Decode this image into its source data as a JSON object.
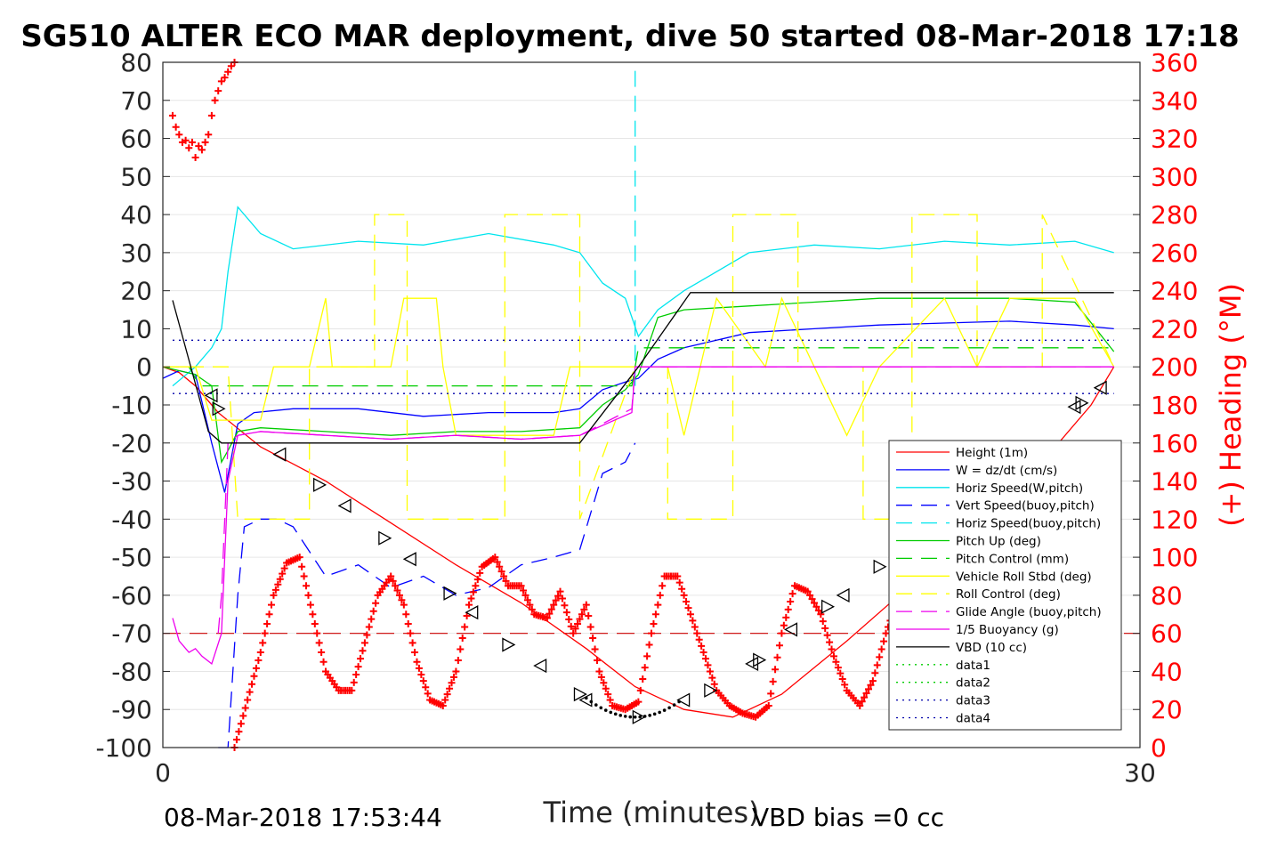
{
  "chart_data": {
    "type": "line",
    "title": "SG510 ALTER ECO MAR deployment, dive 50 started 08-Mar-2018 17:18",
    "xlabel": "Time (minutes)",
    "ylabel_right": "(+) Heading (°M)",
    "xlim": [
      0,
      30
    ],
    "ylim": [
      -100,
      80
    ],
    "ylim_right": [
      0,
      360
    ],
    "x_ticks": [
      "0",
      "30"
    ],
    "y_ticks": [
      "80",
      "70",
      "60",
      "50",
      "40",
      "30",
      "20",
      "10",
      "0",
      "-10",
      "-20",
      "-30",
      "-40",
      "-50",
      "-60",
      "-70",
      "-80",
      "-90",
      "-100"
    ],
    "y_ticks_right": [
      "360",
      "340",
      "320",
      "300",
      "280",
      "260",
      "240",
      "220",
      "200",
      "180",
      "160",
      "140",
      "120",
      "100",
      "80",
      "60",
      "40",
      "20",
      "0"
    ],
    "grid": true,
    "legend_position": "bottom-right",
    "footer_left": "08-Mar-2018 17:53:44",
    "footer_right": "VBD bias =0 cc",
    "colors": {
      "heading": "#ff0000",
      "axis": "#262626"
    },
    "series": [
      {
        "name": "Height (1m)",
        "color": "#ff0000",
        "style": "solid",
        "x": [
          0,
          0.5,
          1,
          1.7,
          3,
          5,
          7,
          9,
          11,
          13,
          14.5,
          16,
          17.5,
          19,
          21,
          23,
          25,
          27,
          28.5,
          29.2
        ],
        "y": [
          0,
          -1.5,
          -5,
          -12,
          -21,
          -30,
          -41,
          -52,
          -62,
          -74,
          -84,
          -90,
          -92,
          -86,
          -72,
          -57,
          -41,
          -25,
          -10,
          0
        ]
      },
      {
        "name": "W = dz/dt (cm/s)",
        "color": "#0000ff",
        "style": "solid",
        "x": [
          0,
          0.5,
          1,
          1.5,
          1.9,
          2.3,
          2.8,
          4,
          6,
          8,
          10,
          12,
          12.8,
          13.5,
          14.2,
          14.6,
          15.2,
          16,
          17,
          18,
          20,
          22,
          24,
          26,
          28,
          29.2
        ],
        "y": [
          -3,
          -1,
          -2,
          -20,
          -33,
          -15,
          -12,
          -11,
          -11,
          -13,
          -12,
          -12,
          -11,
          -6,
          -4,
          -3,
          2,
          5,
          7,
          9,
          10,
          11,
          11.5,
          12,
          11,
          10
        ]
      },
      {
        "name": "Horiz Speed(W,pitch)",
        "color": "#00e5ee",
        "style": "solid",
        "x": [
          0.3,
          1,
          1.5,
          1.8,
          2,
          2.3,
          3,
          4,
          6,
          8,
          10,
          12,
          12.8,
          13.5,
          14.2,
          14.6,
          15.2,
          16,
          17,
          18,
          20,
          22,
          24,
          26,
          28,
          29.2
        ],
        "y": [
          -5,
          0,
          5,
          10,
          25,
          42,
          35,
          31,
          33,
          32,
          35,
          32,
          30,
          22,
          18,
          8,
          15,
          20,
          25,
          30,
          32,
          31,
          33,
          32,
          33,
          30
        ]
      },
      {
        "name": "Vert Speed(buoy,pitch)",
        "color": "#0000ff",
        "style": "dashed",
        "x": [
          1.7,
          2,
          2.3,
          2.5,
          3,
          3.5,
          4,
          5,
          6,
          7,
          8,
          9,
          10,
          11,
          12,
          12.8,
          13.5,
          14.2,
          14.5
        ],
        "y": [
          -100,
          -100,
          -60,
          -42,
          -40,
          -40,
          -42,
          -55,
          -52,
          -58,
          -55,
          -60,
          -58,
          -52,
          -50,
          -48,
          -28,
          -25,
          -20
        ]
      },
      {
        "name": "Horiz Speed(buoy,pitch)",
        "color": "#00e5ee",
        "style": "dashed",
        "x": [
          14.5,
          14.5
        ],
        "y": [
          -5,
          80
        ]
      },
      {
        "name": "Pitch Up (deg)",
        "color": "#00cc00",
        "style": "solid",
        "x": [
          0,
          0.5,
          1,
          1.5,
          1.8,
          2,
          2.3,
          3,
          5,
          7,
          9,
          11,
          12.8,
          13.5,
          14.2,
          14.6,
          15.2,
          16,
          18,
          20,
          22,
          24,
          26,
          28,
          29.2
        ],
        "y": [
          0,
          -1,
          -2,
          -5,
          -25,
          -22,
          -17,
          -16,
          -17,
          -18,
          -17,
          -17,
          -16,
          -10,
          -6,
          -2,
          13,
          15,
          16,
          17,
          18,
          18,
          18,
          17,
          4
        ]
      },
      {
        "name": "Pitch Control (mm)",
        "color": "#00cc00",
        "style": "dashed",
        "x": [
          0,
          0.8,
          1,
          1.2,
          1.3,
          14.4,
          14.6,
          29.2
        ],
        "y": [
          0,
          0,
          -3,
          -5,
          -5,
          -5,
          5,
          5
        ]
      },
      {
        "name": "Vehicle Roll Stbd (deg)",
        "color": "#ffff00",
        "style": "solid",
        "x": [
          0,
          1,
          1.5,
          3,
          3.4,
          3.6,
          4.5,
          5,
          5.2,
          7,
          7.4,
          8.4,
          8.6,
          9,
          12,
          12.5,
          14.5,
          15.5,
          16,
          16.5,
          17,
          18.5,
          19,
          20,
          21,
          22,
          24,
          25,
          26,
          28,
          29.2
        ],
        "y": [
          0,
          0,
          -14,
          -14,
          0,
          0,
          0,
          18,
          0,
          0,
          18,
          18,
          0,
          -18,
          -18,
          0,
          0,
          0,
          -18,
          0,
          18,
          0,
          18,
          0,
          -18,
          0,
          18,
          0,
          18,
          18,
          0
        ]
      },
      {
        "name": "Roll Control (deg)",
        "color": "#ffff00",
        "style": "dashed",
        "x": [
          0,
          2,
          2.3,
          4.5,
          4.5,
          6.5,
          6.5,
          7.5,
          7.5,
          10.5,
          10.5,
          12.8,
          12.8,
          14.5,
          15.5,
          15.5,
          17.5,
          17.5,
          19.5,
          19.5,
          21.5,
          21.5,
          23,
          23,
          25,
          25,
          27,
          27,
          29.2
        ],
        "y": [
          0,
          0,
          -40,
          -40,
          0,
          0,
          40,
          40,
          -40,
          -40,
          40,
          40,
          -40,
          0,
          0,
          -40,
          -40,
          40,
          40,
          0,
          0,
          -40,
          -40,
          40,
          40,
          0,
          0,
          40,
          0
        ]
      },
      {
        "name": "Glide Angle (buoy,pitch)",
        "color": "#ee00ee",
        "style": "dashed",
        "x": [
          1.7,
          1.8,
          2,
          2.3,
          3,
          5,
          7,
          9,
          11,
          12.8,
          14.4,
          14.5,
          29.2
        ],
        "y": [
          -70,
          -60,
          -20,
          -18,
          -17,
          -18,
          -19,
          -18,
          -19,
          -18,
          -11,
          0,
          0
        ]
      },
      {
        "name": "1/5 Buoyancy (g)",
        "color": "#ee00ee",
        "style": "solid",
        "x": [
          0.3,
          0.5,
          0.8,
          1,
          1.2,
          1.5,
          1.8,
          2,
          2.3,
          3,
          5,
          7,
          9,
          11,
          12.8,
          14.4,
          14.5,
          29.2
        ],
        "y": [
          -66,
          -72,
          -75,
          -74,
          -76,
          -78,
          -70,
          -30,
          -18,
          -17,
          -18,
          -19,
          -18,
          -19,
          -18,
          -12,
          0,
          0
        ]
      },
      {
        "name": "VBD (10 cc)",
        "color": "#000000",
        "style": "solid",
        "x": [
          0.3,
          1.4,
          1.8,
          12.8,
          14.6,
          16.2,
          29.2
        ],
        "y": [
          17.5,
          -17,
          -20,
          -20,
          0,
          19.5,
          19.5
        ]
      },
      {
        "name": "data1",
        "color": "#00cc00",
        "style": "dotted",
        "x": [],
        "y": []
      },
      {
        "name": "data2",
        "color": "#00cc00",
        "style": "dotted",
        "x": [],
        "y": []
      },
      {
        "name": "data3",
        "color": "#0000aa",
        "style": "dotted",
        "x": [
          0.3,
          29.2
        ],
        "y": [
          7,
          7
        ]
      },
      {
        "name": "data4",
        "color": "#0000aa",
        "style": "dotted",
        "x": [
          0.3,
          29.2
        ],
        "y": [
          -7,
          -7
        ]
      }
    ],
    "reference_line": {
      "color": "#cc0000",
      "style": "dashed",
      "y": -70
    },
    "heading": {
      "axis": "right",
      "color": "#ff0000",
      "marker": "+",
      "x": [
        0.3,
        0.4,
        0.5,
        0.6,
        0.7,
        0.8,
        0.9,
        1.0,
        1.1,
        1.2,
        1.3,
        1.4,
        1.5,
        1.6,
        1.7,
        1.8,
        1.9,
        2.0,
        2.1,
        2.2
      ],
      "y": [
        332,
        326,
        322,
        318,
        319,
        315,
        318,
        310,
        316,
        314,
        318,
        322,
        332,
        340,
        345,
        350,
        352,
        355,
        358,
        360
      ],
      "x2": [
        2.2,
        2.6,
        3.0,
        3.4,
        3.8,
        4.2,
        4.6,
        5.0,
        5.4,
        5.8,
        6.2,
        6.6,
        7.0,
        7.4,
        7.8,
        8.2,
        8.6,
        9.0,
        9.4,
        9.8,
        10.2,
        10.6,
        11.0,
        11.4,
        11.8,
        12.2,
        12.6,
        13.0,
        13.4,
        13.8,
        14.2,
        14.6,
        15.0,
        15.4,
        15.8,
        16.2,
        16.6,
        17.0,
        17.4,
        17.8,
        18.2,
        18.6,
        19.0,
        19.4,
        19.8,
        20.2,
        20.6,
        21.0,
        21.4,
        21.8,
        22.2,
        22.6,
        23.0,
        23.4,
        23.8,
        24.2,
        24.6,
        25.0,
        25.4,
        25.8,
        26.2
      ],
      "y2": [
        0,
        25,
        50,
        80,
        97,
        100,
        70,
        40,
        30,
        30,
        55,
        80,
        90,
        75,
        45,
        25,
        22,
        40,
        75,
        95,
        100,
        85,
        85,
        70,
        68,
        82,
        60,
        75,
        40,
        22,
        20,
        24,
        60,
        90,
        90,
        70,
        50,
        30,
        22,
        18,
        16,
        22,
        60,
        85,
        82,
        70,
        48,
        30,
        22,
        35,
        60,
        80,
        85,
        82,
        80,
        78,
        70,
        60,
        45,
        35,
        30
      ]
    },
    "triangles": {
      "x": [
        1.5,
        1.7,
        3.6,
        4.8,
        5.6,
        6.8,
        7.6,
        8.8,
        9.5,
        10.6,
        11.6,
        12.8,
        13.0,
        14.6,
        16.0,
        16.8,
        18.1,
        18.3,
        19.3,
        20.4,
        20.9,
        22.0,
        28.0,
        28.2,
        28.8
      ],
      "y": [
        -7.5,
        -11,
        -23,
        -31,
        -36.5,
        -45,
        -50.5,
        -59.5,
        -64.5,
        -73,
        -78.5,
        -86,
        -87.5,
        -92,
        -87.5,
        -85,
        -78,
        -77,
        -69,
        -63,
        -60,
        -52.5,
        -10.5,
        -9.5,
        -5.5
      ]
    }
  }
}
